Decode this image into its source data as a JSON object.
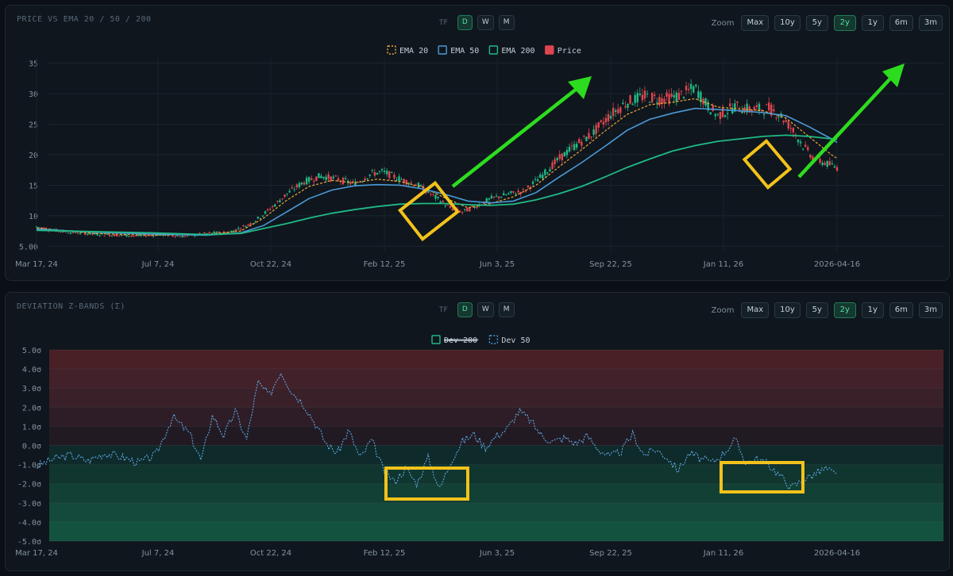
{
  "chart_data": [
    {
      "type": "candlestick",
      "title": "PRICE VS EMA 20 / 50 / 200",
      "timeframe": {
        "label": "TF",
        "options": [
          "D",
          "W",
          "M"
        ],
        "selected": "D"
      },
      "zoom": {
        "label": "Zoom",
        "options": [
          "Max",
          "10y",
          "5y",
          "2y",
          "1y",
          "6m",
          "3m"
        ],
        "selected": "2y"
      },
      "legend": [
        {
          "name": "EMA 20",
          "color": "#f0a93a",
          "style": "dashed"
        },
        {
          "name": "EMA 50",
          "color": "#4b9ad8",
          "style": "solid"
        },
        {
          "name": "EMA 200",
          "color": "#21b985",
          "style": "solid"
        },
        {
          "name": "Price",
          "color": "#e0454f",
          "style": "fill"
        }
      ],
      "xticks": [
        "Mar 17, 24",
        "Jul 7, 24",
        "Oct 22, 24",
        "Feb 12, 25",
        "Jun 3, 25",
        "Sep 22, 25",
        "Jan 11, 26",
        "2026-04-16"
      ],
      "yticks": [
        "5.00",
        "10",
        "15",
        "20",
        "25",
        "30",
        "35"
      ],
      "ylim": [
        4,
        36
      ],
      "series": [
        {
          "name": "Price",
          "points": [
            [
              0,
              8.2
            ],
            [
              0.03,
              7.6
            ],
            [
              0.06,
              7.3
            ],
            [
              0.1,
              7.0
            ],
            [
              0.14,
              6.8
            ],
            [
              0.18,
              6.7
            ],
            [
              0.22,
              6.9
            ],
            [
              0.26,
              6.6
            ],
            [
              0.3,
              7.1
            ],
            [
              0.34,
              7.3
            ],
            [
              0.38,
              8.8
            ],
            [
              0.41,
              11.0
            ],
            [
              0.44,
              13.5
            ],
            [
              0.47,
              15.5
            ],
            [
              0.5,
              16.5
            ],
            [
              0.53,
              16.0
            ],
            [
              0.56,
              15.2
            ],
            [
              0.59,
              16.9
            ],
            [
              0.61,
              17.2
            ],
            [
              0.64,
              16.0
            ],
            [
              0.67,
              15.1
            ],
            [
              0.7,
              13.2
            ],
            [
              0.73,
              11.2
            ],
            [
              0.75,
              10.6
            ],
            [
              0.78,
              11.8
            ],
            [
              0.8,
              12.8
            ],
            [
              0.83,
              13.5
            ],
            [
              0.86,
              14.1
            ],
            [
              0.89,
              16.5
            ],
            [
              0.92,
              19.3
            ],
            [
              0.95,
              21.6
            ],
            [
              0.98,
              23.5
            ],
            [
              1.01,
              26.5
            ],
            [
              1.04,
              28.6
            ],
            [
              1.07,
              29.6
            ],
            [
              1.1,
              29.1
            ],
            [
              1.13,
              29.6
            ],
            [
              1.16,
              31.0
            ],
            [
              1.18,
              28.2
            ],
            [
              1.2,
              26.4
            ],
            [
              1.23,
              27.9
            ],
            [
              1.26,
              27.4
            ],
            [
              1.29,
              27.6
            ],
            [
              1.31,
              26.5
            ],
            [
              1.33,
              24.3
            ],
            [
              1.35,
              21.5
            ],
            [
              1.37,
              19.3
            ],
            [
              1.39,
              18.6
            ],
            [
              1.41,
              17.9
            ]
          ]
        },
        {
          "name": "EMA 20",
          "points": [
            [
              0,
              8.0
            ],
            [
              0.1,
              7.1
            ],
            [
              0.2,
              6.8
            ],
            [
              0.3,
              6.9
            ],
            [
              0.36,
              7.5
            ],
            [
              0.4,
              9.6
            ],
            [
              0.44,
              12.5
            ],
            [
              0.48,
              14.8
            ],
            [
              0.52,
              15.8
            ],
            [
              0.56,
              15.4
            ],
            [
              0.6,
              16.0
            ],
            [
              0.64,
              15.6
            ],
            [
              0.68,
              14.7
            ],
            [
              0.72,
              12.9
            ],
            [
              0.76,
              11.3
            ],
            [
              0.8,
              12.0
            ],
            [
              0.84,
              13.1
            ],
            [
              0.88,
              15.0
            ],
            [
              0.92,
              18.0
            ],
            [
              0.96,
              20.8
            ],
            [
              1.0,
              23.8
            ],
            [
              1.04,
              26.6
            ],
            [
              1.08,
              28.2
            ],
            [
              1.12,
              28.6
            ],
            [
              1.16,
              29.2
            ],
            [
              1.2,
              27.8
            ],
            [
              1.24,
              27.5
            ],
            [
              1.28,
              27.2
            ],
            [
              1.32,
              26.0
            ],
            [
              1.36,
              23.0
            ],
            [
              1.4,
              20.0
            ],
            [
              1.41,
              19.4
            ]
          ]
        },
        {
          "name": "EMA 50",
          "points": [
            [
              0,
              7.8
            ],
            [
              0.1,
              7.3
            ],
            [
              0.2,
              7.0
            ],
            [
              0.3,
              6.8
            ],
            [
              0.36,
              7.2
            ],
            [
              0.4,
              8.4
            ],
            [
              0.44,
              10.6
            ],
            [
              0.48,
              12.8
            ],
            [
              0.52,
              14.2
            ],
            [
              0.56,
              14.9
            ],
            [
              0.6,
              15.1
            ],
            [
              0.64,
              15.0
            ],
            [
              0.68,
              14.4
            ],
            [
              0.72,
              13.5
            ],
            [
              0.76,
              12.4
            ],
            [
              0.8,
              12.1
            ],
            [
              0.84,
              12.4
            ],
            [
              0.88,
              13.8
            ],
            [
              0.92,
              16.3
            ],
            [
              0.96,
              18.7
            ],
            [
              1.0,
              21.3
            ],
            [
              1.04,
              24.0
            ],
            [
              1.08,
              25.8
            ],
            [
              1.12,
              26.8
            ],
            [
              1.16,
              27.6
            ],
            [
              1.2,
              27.4
            ],
            [
              1.24,
              27.2
            ],
            [
              1.28,
              26.9
            ],
            [
              1.32,
              26.4
            ],
            [
              1.36,
              24.6
            ],
            [
              1.4,
              22.6
            ],
            [
              1.41,
              22.0
            ]
          ]
        },
        {
          "name": "EMA 200",
          "points": [
            [
              0,
              7.6
            ],
            [
              0.1,
              7.4
            ],
            [
              0.2,
              7.2
            ],
            [
              0.3,
              6.9
            ],
            [
              0.36,
              7.1
            ],
            [
              0.4,
              7.9
            ],
            [
              0.44,
              8.7
            ],
            [
              0.48,
              9.6
            ],
            [
              0.52,
              10.4
            ],
            [
              0.56,
              11.0
            ],
            [
              0.6,
              11.5
            ],
            [
              0.64,
              11.9
            ],
            [
              0.68,
              12.0
            ],
            [
              0.72,
              12.0
            ],
            [
              0.76,
              11.8
            ],
            [
              0.8,
              11.7
            ],
            [
              0.84,
              11.9
            ],
            [
              0.88,
              12.6
            ],
            [
              0.92,
              13.6
            ],
            [
              0.96,
              14.8
            ],
            [
              1.0,
              16.3
            ],
            [
              1.04,
              17.9
            ],
            [
              1.08,
              19.3
            ],
            [
              1.12,
              20.6
            ],
            [
              1.16,
              21.5
            ],
            [
              1.2,
              22.2
            ],
            [
              1.24,
              22.6
            ],
            [
              1.28,
              23.0
            ],
            [
              1.32,
              23.2
            ],
            [
              1.36,
              23.0
            ],
            [
              1.4,
              22.6
            ],
            [
              1.41,
              22.5
            ]
          ]
        }
      ]
    },
    {
      "type": "line",
      "title": "DEVIATION Z-BANDS (Σ)",
      "timeframe": {
        "label": "TF",
        "options": [
          "D",
          "W",
          "M"
        ],
        "selected": "D"
      },
      "zoom": {
        "label": "Zoom",
        "options": [
          "Max",
          "10y",
          "5y",
          "2y",
          "1y",
          "6m",
          "3m"
        ],
        "selected": "2y"
      },
      "legend": [
        {
          "name": "Dev 200",
          "color": "#21b985",
          "style": "hidden"
        },
        {
          "name": "Dev 50",
          "color": "#4b9ad8",
          "style": "dashed"
        }
      ],
      "xticks": [
        "Mar 17, 24",
        "Jul 7, 24",
        "Oct 22, 24",
        "Feb 12, 25",
        "Jun 3, 25",
        "Sep 22, 25",
        "Jan 11, 26",
        "2026-04-16"
      ],
      "yticks": [
        "5.0σ",
        "4.0σ",
        "3.0σ",
        "2.0σ",
        "1.0σ",
        "0.0σ",
        "-1.0σ",
        "-2.0σ",
        "-3.0σ",
        "-4.0σ",
        "-5.0σ"
      ],
      "ylim": [
        -5,
        5
      ],
      "series": [
        {
          "name": "Dev 50",
          "points": [
            [
              0,
              -1.1
            ],
            [
              0.03,
              -0.7
            ],
            [
              0.06,
              -0.5
            ],
            [
              0.09,
              -0.8
            ],
            [
              0.12,
              -0.4
            ],
            [
              0.15,
              -0.6
            ],
            [
              0.18,
              -0.9
            ],
            [
              0.21,
              -0.5
            ],
            [
              0.24,
              1.5
            ],
            [
              0.27,
              0.6
            ],
            [
              0.29,
              -0.8
            ],
            [
              0.31,
              1.6
            ],
            [
              0.33,
              0.5
            ],
            [
              0.35,
              1.8
            ],
            [
              0.37,
              0.3
            ],
            [
              0.39,
              3.3
            ],
            [
              0.41,
              2.6
            ],
            [
              0.43,
              3.9
            ],
            [
              0.45,
              2.8
            ],
            [
              0.47,
              2.2
            ],
            [
              0.49,
              1.2
            ],
            [
              0.51,
              0.1
            ],
            [
              0.53,
              -0.4
            ],
            [
              0.55,
              0.8
            ],
            [
              0.57,
              -0.7
            ],
            [
              0.59,
              0.3
            ],
            [
              0.61,
              -1.2
            ],
            [
              0.63,
              -1.9
            ],
            [
              0.65,
              -1.2
            ],
            [
              0.67,
              -2.0
            ],
            [
              0.69,
              -0.6
            ],
            [
              0.71,
              -2.3
            ],
            [
              0.73,
              -0.8
            ],
            [
              0.75,
              0.2
            ],
            [
              0.77,
              0.6
            ],
            [
              0.79,
              -0.1
            ],
            [
              0.81,
              0.5
            ],
            [
              0.83,
              0.9
            ],
            [
              0.85,
              1.8
            ],
            [
              0.87,
              1.3
            ],
            [
              0.89,
              0.5
            ],
            [
              0.91,
              0.2
            ],
            [
              0.93,
              0.4
            ],
            [
              0.95,
              0.1
            ],
            [
              0.97,
              0.5
            ],
            [
              0.99,
              -0.2
            ],
            [
              1.01,
              -0.6
            ],
            [
              1.03,
              -0.3
            ],
            [
              1.05,
              0.6
            ],
            [
              1.07,
              -0.5
            ],
            [
              1.09,
              -0.2
            ],
            [
              1.11,
              -0.6
            ],
            [
              1.13,
              -1.3
            ],
            [
              1.15,
              -0.4
            ],
            [
              1.17,
              -0.7
            ],
            [
              1.19,
              -0.9
            ],
            [
              1.21,
              -0.4
            ],
            [
              1.23,
              0.3
            ],
            [
              1.25,
              -0.9
            ],
            [
              1.27,
              -0.7
            ],
            [
              1.29,
              -1.0
            ],
            [
              1.31,
              -1.6
            ],
            [
              1.33,
              -2.2
            ],
            [
              1.35,
              -1.8
            ],
            [
              1.37,
              -1.5
            ],
            [
              1.39,
              -1.2
            ],
            [
              1.41,
              -1.6
            ]
          ]
        }
      ]
    }
  ]
}
